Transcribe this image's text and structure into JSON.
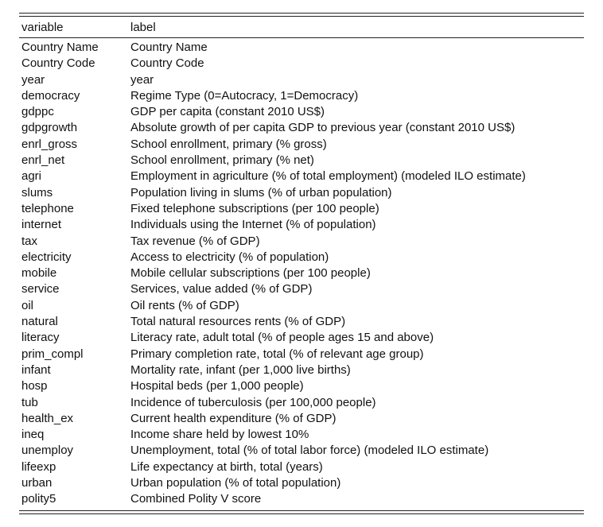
{
  "table": {
    "headers": {
      "variable": "variable",
      "label": "label"
    },
    "rows": [
      {
        "variable": "Country Name",
        "label": "Country Name"
      },
      {
        "variable": "Country Code",
        "label": "Country Code"
      },
      {
        "variable": "year",
        "label": "year"
      },
      {
        "variable": "democracy",
        "label": "Regime Type (0=Autocracy, 1=Democracy)"
      },
      {
        "variable": "gdppc",
        "label": "GDP per capita (constant 2010 US$)"
      },
      {
        "variable": "gdpgrowth",
        "label": "Absolute growth of per capita GDP to previous year (constant 2010 US$)"
      },
      {
        "variable": "enrl_gross",
        "label": "School enrollment, primary (% gross)"
      },
      {
        "variable": "enrl_net",
        "label": "School enrollment, primary (% net)"
      },
      {
        "variable": "agri",
        "label": "Employment in agriculture (% of total employment) (modeled ILO estimate)"
      },
      {
        "variable": "slums",
        "label": "Population living in slums (% of urban population)"
      },
      {
        "variable": "telephone",
        "label": "Fixed telephone subscriptions (per 100 people)"
      },
      {
        "variable": "internet",
        "label": "Individuals using the Internet (% of population)"
      },
      {
        "variable": "tax",
        "label": "Tax revenue (% of GDP)"
      },
      {
        "variable": "electricity",
        "label": "Access to electricity (% of population)"
      },
      {
        "variable": "mobile",
        "label": "Mobile cellular subscriptions (per 100 people)"
      },
      {
        "variable": "service",
        "label": "Services, value added (% of GDP)"
      },
      {
        "variable": "oil",
        "label": "Oil rents (% of GDP)"
      },
      {
        "variable": "natural",
        "label": "Total natural resources rents (% of GDP)"
      },
      {
        "variable": "literacy",
        "label": "Literacy rate, adult total (% of people ages 15 and above)"
      },
      {
        "variable": "prim_compl",
        "label": "Primary completion rate, total (% of relevant age group)"
      },
      {
        "variable": "infant",
        "label": "Mortality rate, infant (per 1,000 live births)"
      },
      {
        "variable": "hosp",
        "label": "Hospital beds (per 1,000 people)"
      },
      {
        "variable": "tub",
        "label": "Incidence of tuberculosis (per 100,000 people)"
      },
      {
        "variable": "health_ex",
        "label": "Current health expenditure (% of GDP)"
      },
      {
        "variable": "ineq",
        "label": "Income share held by lowest 10%"
      },
      {
        "variable": "unemploy",
        "label": "Unemployment, total (% of total labor force) (modeled ILO estimate)"
      },
      {
        "variable": "lifeexp",
        "label": "Life expectancy at birth, total (years)"
      },
      {
        "variable": "urban",
        "label": "Urban population (% of total population)"
      },
      {
        "variable": "polity5",
        "label": "Combined Polity V score"
      }
    ]
  }
}
